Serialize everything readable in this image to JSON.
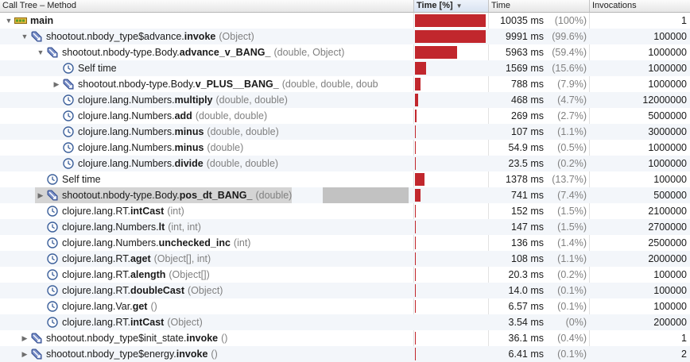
{
  "header": {
    "method": "Call Tree – Method",
    "time_pct": "Time [%]",
    "time": "Time",
    "invocations": "Invocations"
  },
  "colors": {
    "bar": "#c1272d",
    "stripe": "#f3f6fa",
    "selected": "#d4d4d4"
  },
  "rows": [
    {
      "depth": 0,
      "toggle": "expanded",
      "icon": "thread-icon",
      "prefix": "",
      "method": "main",
      "args": "",
      "pct_value": 100,
      "time": "10035 ms",
      "pct": "(100%)",
      "invocations": "1"
    },
    {
      "depth": 1,
      "toggle": "expanded",
      "icon": "method-icon",
      "prefix": "shootout.nbody_type$advance.",
      "method": "invoke",
      "args": "(Object)",
      "pct_value": 99.6,
      "time": "9991 ms",
      "pct": "(99.6%)",
      "invocations": "100000"
    },
    {
      "depth": 2,
      "toggle": "expanded",
      "icon": "method-icon",
      "prefix": "shootout.nbody-type.Body.",
      "method": "advance_v_BANG_",
      "args": "(double, Object)",
      "pct_value": 59.4,
      "time": "5963 ms",
      "pct": "(59.4%)",
      "invocations": "1000000"
    },
    {
      "depth": 3,
      "toggle": "none",
      "icon": "clock-icon",
      "prefix": "Self time",
      "method": "",
      "args": "",
      "pct_value": 15.6,
      "time": "1569 ms",
      "pct": "(15.6%)",
      "invocations": "1000000"
    },
    {
      "depth": 3,
      "toggle": "collapsed",
      "icon": "method-icon",
      "prefix": "shootout.nbody-type.Body.",
      "method": "v_PLUS__BANG_",
      "args": "(double, double, doub",
      "pct_value": 7.9,
      "time": "788 ms",
      "pct": "(7.9%)",
      "invocations": "1000000"
    },
    {
      "depth": 3,
      "toggle": "none",
      "icon": "clock-icon",
      "prefix": "clojure.lang.Numbers.",
      "method": "multiply",
      "args": "(double, double)",
      "pct_value": 4.7,
      "time": "468 ms",
      "pct": "(4.7%)",
      "invocations": "12000000"
    },
    {
      "depth": 3,
      "toggle": "none",
      "icon": "clock-icon",
      "prefix": "clojure.lang.Numbers.",
      "method": "add",
      "args": "(double, double)",
      "pct_value": 2.7,
      "time": "269 ms",
      "pct": "(2.7%)",
      "invocations": "5000000"
    },
    {
      "depth": 3,
      "toggle": "none",
      "icon": "clock-icon",
      "prefix": "clojure.lang.Numbers.",
      "method": "minus",
      "args": "(double, double)",
      "pct_value": 1.1,
      "time": "107 ms",
      "pct": "(1.1%)",
      "invocations": "3000000"
    },
    {
      "depth": 3,
      "toggle": "none",
      "icon": "clock-icon",
      "prefix": "clojure.lang.Numbers.",
      "method": "minus",
      "args": "(double)",
      "pct_value": 0.5,
      "time": "54.9 ms",
      "pct": "(0.5%)",
      "invocations": "1000000"
    },
    {
      "depth": 3,
      "toggle": "none",
      "icon": "clock-icon",
      "prefix": "clojure.lang.Numbers.",
      "method": "divide",
      "args": "(double, double)",
      "pct_value": 0.2,
      "time": "23.5 ms",
      "pct": "(0.2%)",
      "invocations": "1000000"
    },
    {
      "depth": 2,
      "toggle": "none",
      "icon": "clock-icon",
      "prefix": "Self time",
      "method": "",
      "args": "",
      "pct_value": 13.7,
      "time": "1378 ms",
      "pct": "(13.7%)",
      "invocations": "100000"
    },
    {
      "depth": 2,
      "toggle": "collapsed",
      "icon": "method-icon",
      "prefix": "shootout.nbody-type.Body.",
      "method": "pos_dt_BANG_",
      "args": "(double)",
      "pct_value": 7.4,
      "time": "741 ms",
      "pct": "(7.4%)",
      "invocations": "500000",
      "selected": true
    },
    {
      "depth": 2,
      "toggle": "none",
      "icon": "clock-icon",
      "prefix": "clojure.lang.RT.",
      "method": "intCast",
      "args": "(int)",
      "pct_value": 1.5,
      "time": "152 ms",
      "pct": "(1.5%)",
      "invocations": "2100000"
    },
    {
      "depth": 2,
      "toggle": "none",
      "icon": "clock-icon",
      "prefix": "clojure.lang.Numbers.",
      "method": "lt",
      "args": "(int, int)",
      "pct_value": 1.5,
      "time": "147 ms",
      "pct": "(1.5%)",
      "invocations": "2700000"
    },
    {
      "depth": 2,
      "toggle": "none",
      "icon": "clock-icon",
      "prefix": "clojure.lang.Numbers.",
      "method": "unchecked_inc",
      "args": "(int)",
      "pct_value": 1.4,
      "time": "136 ms",
      "pct": "(1.4%)",
      "invocations": "2500000"
    },
    {
      "depth": 2,
      "toggle": "none",
      "icon": "clock-icon",
      "prefix": "clojure.lang.RT.",
      "method": "aget",
      "args": "(Object[], int)",
      "pct_value": 1.1,
      "time": "108 ms",
      "pct": "(1.1%)",
      "invocations": "2000000"
    },
    {
      "depth": 2,
      "toggle": "none",
      "icon": "clock-icon",
      "prefix": "clojure.lang.RT.",
      "method": "alength",
      "args": "(Object[])",
      "pct_value": 0.2,
      "time": "20.3 ms",
      "pct": "(0.2%)",
      "invocations": "100000"
    },
    {
      "depth": 2,
      "toggle": "none",
      "icon": "clock-icon",
      "prefix": "clojure.lang.RT.",
      "method": "doubleCast",
      "args": "(Object)",
      "pct_value": 0.1,
      "time": "14.0 ms",
      "pct": "(0.1%)",
      "invocations": "100000"
    },
    {
      "depth": 2,
      "toggle": "none",
      "icon": "clock-icon",
      "prefix": "clojure.lang.Var.",
      "method": "get",
      "args": "()",
      "pct_value": 0.1,
      "time": "6.57 ms",
      "pct": "(0.1%)",
      "invocations": "100000"
    },
    {
      "depth": 2,
      "toggle": "none",
      "icon": "clock-icon",
      "prefix": "clojure.lang.RT.",
      "method": "intCast",
      "args": "(Object)",
      "pct_value": 0,
      "time": "3.54 ms",
      "pct": "(0%)",
      "invocations": "200000"
    },
    {
      "depth": 1,
      "toggle": "collapsed",
      "icon": "method-icon",
      "prefix": "shootout.nbody_type$init_state.",
      "method": "invoke",
      "args": "()",
      "pct_value": 0.4,
      "time": "36.1 ms",
      "pct": "(0.4%)",
      "invocations": "1"
    },
    {
      "depth": 1,
      "toggle": "collapsed",
      "icon": "method-icon",
      "prefix": "shootout.nbody_type$energy.",
      "method": "invoke",
      "args": "()",
      "pct_value": 0.1,
      "time": "6.41 ms",
      "pct": "(0.1%)",
      "invocations": "2"
    }
  ]
}
